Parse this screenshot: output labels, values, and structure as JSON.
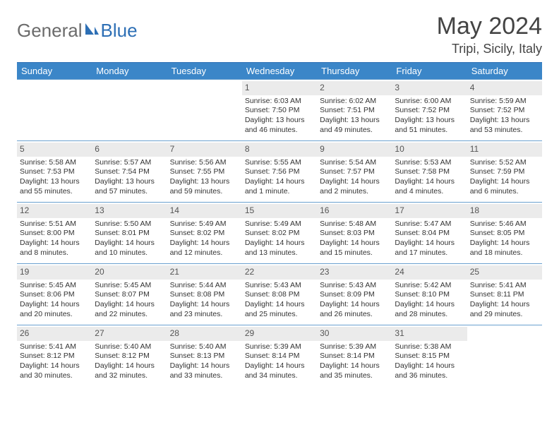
{
  "brand": {
    "part1": "General",
    "part2": "Blue"
  },
  "title": "May 2024",
  "location": "Tripi, Sicily, Italy",
  "colors": {
    "header_bg": "#3b86c8",
    "header_border": "#2d6fb5",
    "week_border": "#6aa0cf",
    "daynum_bg": "#ebebeb",
    "text": "#333333",
    "brand_gray": "#6b6b6b",
    "brand_blue": "#2d6fb5"
  },
  "days_of_week": [
    "Sunday",
    "Monday",
    "Tuesday",
    "Wednesday",
    "Thursday",
    "Friday",
    "Saturday"
  ],
  "weeks": [
    [
      {
        "num": "",
        "sunrise": "",
        "sunset": "",
        "daylight": ""
      },
      {
        "num": "",
        "sunrise": "",
        "sunset": "",
        "daylight": ""
      },
      {
        "num": "",
        "sunrise": "",
        "sunset": "",
        "daylight": ""
      },
      {
        "num": "1",
        "sunrise": "Sunrise: 6:03 AM",
        "sunset": "Sunset: 7:50 PM",
        "daylight": "Daylight: 13 hours and 46 minutes."
      },
      {
        "num": "2",
        "sunrise": "Sunrise: 6:02 AM",
        "sunset": "Sunset: 7:51 PM",
        "daylight": "Daylight: 13 hours and 49 minutes."
      },
      {
        "num": "3",
        "sunrise": "Sunrise: 6:00 AM",
        "sunset": "Sunset: 7:52 PM",
        "daylight": "Daylight: 13 hours and 51 minutes."
      },
      {
        "num": "4",
        "sunrise": "Sunrise: 5:59 AM",
        "sunset": "Sunset: 7:52 PM",
        "daylight": "Daylight: 13 hours and 53 minutes."
      }
    ],
    [
      {
        "num": "5",
        "sunrise": "Sunrise: 5:58 AM",
        "sunset": "Sunset: 7:53 PM",
        "daylight": "Daylight: 13 hours and 55 minutes."
      },
      {
        "num": "6",
        "sunrise": "Sunrise: 5:57 AM",
        "sunset": "Sunset: 7:54 PM",
        "daylight": "Daylight: 13 hours and 57 minutes."
      },
      {
        "num": "7",
        "sunrise": "Sunrise: 5:56 AM",
        "sunset": "Sunset: 7:55 PM",
        "daylight": "Daylight: 13 hours and 59 minutes."
      },
      {
        "num": "8",
        "sunrise": "Sunrise: 5:55 AM",
        "sunset": "Sunset: 7:56 PM",
        "daylight": "Daylight: 14 hours and 1 minute."
      },
      {
        "num": "9",
        "sunrise": "Sunrise: 5:54 AM",
        "sunset": "Sunset: 7:57 PM",
        "daylight": "Daylight: 14 hours and 2 minutes."
      },
      {
        "num": "10",
        "sunrise": "Sunrise: 5:53 AM",
        "sunset": "Sunset: 7:58 PM",
        "daylight": "Daylight: 14 hours and 4 minutes."
      },
      {
        "num": "11",
        "sunrise": "Sunrise: 5:52 AM",
        "sunset": "Sunset: 7:59 PM",
        "daylight": "Daylight: 14 hours and 6 minutes."
      }
    ],
    [
      {
        "num": "12",
        "sunrise": "Sunrise: 5:51 AM",
        "sunset": "Sunset: 8:00 PM",
        "daylight": "Daylight: 14 hours and 8 minutes."
      },
      {
        "num": "13",
        "sunrise": "Sunrise: 5:50 AM",
        "sunset": "Sunset: 8:01 PM",
        "daylight": "Daylight: 14 hours and 10 minutes."
      },
      {
        "num": "14",
        "sunrise": "Sunrise: 5:49 AM",
        "sunset": "Sunset: 8:02 PM",
        "daylight": "Daylight: 14 hours and 12 minutes."
      },
      {
        "num": "15",
        "sunrise": "Sunrise: 5:49 AM",
        "sunset": "Sunset: 8:02 PM",
        "daylight": "Daylight: 14 hours and 13 minutes."
      },
      {
        "num": "16",
        "sunrise": "Sunrise: 5:48 AM",
        "sunset": "Sunset: 8:03 PM",
        "daylight": "Daylight: 14 hours and 15 minutes."
      },
      {
        "num": "17",
        "sunrise": "Sunrise: 5:47 AM",
        "sunset": "Sunset: 8:04 PM",
        "daylight": "Daylight: 14 hours and 17 minutes."
      },
      {
        "num": "18",
        "sunrise": "Sunrise: 5:46 AM",
        "sunset": "Sunset: 8:05 PM",
        "daylight": "Daylight: 14 hours and 18 minutes."
      }
    ],
    [
      {
        "num": "19",
        "sunrise": "Sunrise: 5:45 AM",
        "sunset": "Sunset: 8:06 PM",
        "daylight": "Daylight: 14 hours and 20 minutes."
      },
      {
        "num": "20",
        "sunrise": "Sunrise: 5:45 AM",
        "sunset": "Sunset: 8:07 PM",
        "daylight": "Daylight: 14 hours and 22 minutes."
      },
      {
        "num": "21",
        "sunrise": "Sunrise: 5:44 AM",
        "sunset": "Sunset: 8:08 PM",
        "daylight": "Daylight: 14 hours and 23 minutes."
      },
      {
        "num": "22",
        "sunrise": "Sunrise: 5:43 AM",
        "sunset": "Sunset: 8:08 PM",
        "daylight": "Daylight: 14 hours and 25 minutes."
      },
      {
        "num": "23",
        "sunrise": "Sunrise: 5:43 AM",
        "sunset": "Sunset: 8:09 PM",
        "daylight": "Daylight: 14 hours and 26 minutes."
      },
      {
        "num": "24",
        "sunrise": "Sunrise: 5:42 AM",
        "sunset": "Sunset: 8:10 PM",
        "daylight": "Daylight: 14 hours and 28 minutes."
      },
      {
        "num": "25",
        "sunrise": "Sunrise: 5:41 AM",
        "sunset": "Sunset: 8:11 PM",
        "daylight": "Daylight: 14 hours and 29 minutes."
      }
    ],
    [
      {
        "num": "26",
        "sunrise": "Sunrise: 5:41 AM",
        "sunset": "Sunset: 8:12 PM",
        "daylight": "Daylight: 14 hours and 30 minutes."
      },
      {
        "num": "27",
        "sunrise": "Sunrise: 5:40 AM",
        "sunset": "Sunset: 8:12 PM",
        "daylight": "Daylight: 14 hours and 32 minutes."
      },
      {
        "num": "28",
        "sunrise": "Sunrise: 5:40 AM",
        "sunset": "Sunset: 8:13 PM",
        "daylight": "Daylight: 14 hours and 33 minutes."
      },
      {
        "num": "29",
        "sunrise": "Sunrise: 5:39 AM",
        "sunset": "Sunset: 8:14 PM",
        "daylight": "Daylight: 14 hours and 34 minutes."
      },
      {
        "num": "30",
        "sunrise": "Sunrise: 5:39 AM",
        "sunset": "Sunset: 8:14 PM",
        "daylight": "Daylight: 14 hours and 35 minutes."
      },
      {
        "num": "31",
        "sunrise": "Sunrise: 5:38 AM",
        "sunset": "Sunset: 8:15 PM",
        "daylight": "Daylight: 14 hours and 36 minutes."
      },
      {
        "num": "",
        "sunrise": "",
        "sunset": "",
        "daylight": ""
      }
    ]
  ]
}
